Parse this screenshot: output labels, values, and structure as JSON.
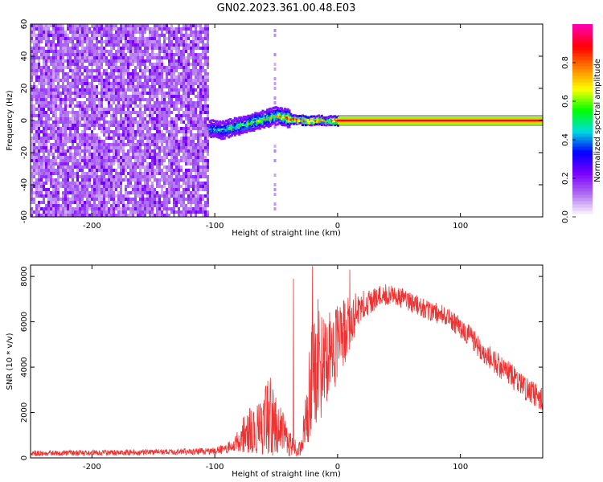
{
  "figure": {
    "title": "GN02.2023.361.00.48.E03"
  },
  "chart_data": [
    {
      "type": "heatmap",
      "xlabel": "Height of straight line (km)",
      "ylabel": "Frequency (Hz)",
      "xlim": [
        -250,
        167
      ],
      "ylim": [
        -60,
        60
      ],
      "x_ticks": [
        -200,
        -100,
        0,
        100
      ],
      "y_ticks": [
        -60,
        -40,
        -20,
        0,
        20,
        40,
        60
      ],
      "colorbar": {
        "label": "Normalized spectral amplitude",
        "range": [
          0,
          1
        ],
        "ticks": [
          "0.0",
          "0.2",
          "0.4",
          "0.6",
          "0.8"
        ],
        "colors": [
          "#ffffff",
          "#b070f0",
          "#7a00ff",
          "#0000ff",
          "#00dddd",
          "#00ff00",
          "#ffff00",
          "#ff8000",
          "#ff0000",
          "#ff00aa"
        ]
      },
      "noise_region_x": [
        -250,
        -105
      ],
      "signal_track": [
        {
          "x": -105,
          "f": -5,
          "amp": 0.45
        },
        {
          "x": -95,
          "f": -6,
          "amp": 0.5
        },
        {
          "x": -85,
          "f": -4,
          "amp": 0.55
        },
        {
          "x": -75,
          "f": -2,
          "amp": 0.6
        },
        {
          "x": -65,
          "f": 0,
          "amp": 0.62
        },
        {
          "x": -55,
          "f": 2,
          "amp": 0.65
        },
        {
          "x": -50,
          "f": 3,
          "amp": 0.7
        },
        {
          "x": -45,
          "f": 2,
          "amp": 0.75
        },
        {
          "x": -35,
          "f": 0.5,
          "amp": 0.85
        },
        {
          "x": -20,
          "f": 0,
          "amp": 0.9
        },
        {
          "x": -8,
          "f": 0,
          "amp": 0.6
        },
        {
          "x": 0,
          "f": 0,
          "amp": 0.9
        },
        {
          "x": 167,
          "f": 0,
          "amp": 0.9
        }
      ]
    },
    {
      "type": "line",
      "xlabel": "Height of straight line (km)",
      "ylabel": "SNR (10 * v/v)",
      "xlim": [
        -250,
        167
      ],
      "ylim": [
        0,
        8500
      ],
      "x_ticks": [
        -200,
        -100,
        0,
        100
      ],
      "y_ticks": [
        0,
        2000,
        4000,
        6000,
        8000
      ],
      "color": "#ee3333",
      "envelope": [
        {
          "x": -250,
          "mean": 200,
          "amp": 120
        },
        {
          "x": -150,
          "mean": 250,
          "amp": 130
        },
        {
          "x": -100,
          "mean": 300,
          "amp": 150
        },
        {
          "x": -85,
          "mean": 500,
          "amp": 300
        },
        {
          "x": -75,
          "mean": 1100,
          "amp": 900
        },
        {
          "x": -65,
          "mean": 1400,
          "amp": 1200
        },
        {
          "x": -55,
          "mean": 1800,
          "amp": 1800
        },
        {
          "x": -48,
          "mean": 1400,
          "amp": 1300
        },
        {
          "x": -40,
          "mean": 600,
          "amp": 600
        },
        {
          "x": -30,
          "mean": 350,
          "amp": 300
        },
        {
          "x": -26,
          "mean": 1500,
          "amp": 1400
        },
        {
          "x": -22,
          "mean": 3200,
          "amp": 2500
        },
        {
          "x": -18,
          "mean": 3800,
          "amp": 3000
        },
        {
          "x": -10,
          "mean": 4300,
          "amp": 2000
        },
        {
          "x": 0,
          "mean": 5000,
          "amp": 1800
        },
        {
          "x": 10,
          "mean": 6000,
          "amp": 1200
        },
        {
          "x": 20,
          "mean": 6700,
          "amp": 700
        },
        {
          "x": 35,
          "mean": 7200,
          "amp": 500
        },
        {
          "x": 50,
          "mean": 7100,
          "amp": 450
        },
        {
          "x": 70,
          "mean": 6600,
          "amp": 450
        },
        {
          "x": 90,
          "mean": 6200,
          "amp": 450
        },
        {
          "x": 105,
          "mean": 5500,
          "amp": 500
        },
        {
          "x": 120,
          "mean": 4600,
          "amp": 500
        },
        {
          "x": 140,
          "mean": 3700,
          "amp": 550
        },
        {
          "x": 155,
          "mean": 3000,
          "amp": 550
        },
        {
          "x": 167,
          "mean": 2500,
          "amp": 600
        }
      ],
      "spikes": [
        {
          "x": -20.5,
          "y": 8450
        },
        {
          "x": -36,
          "y": 7900
        },
        {
          "x": 10,
          "y": 8300
        },
        {
          "x": -16,
          "y": 7000
        }
      ]
    }
  ]
}
